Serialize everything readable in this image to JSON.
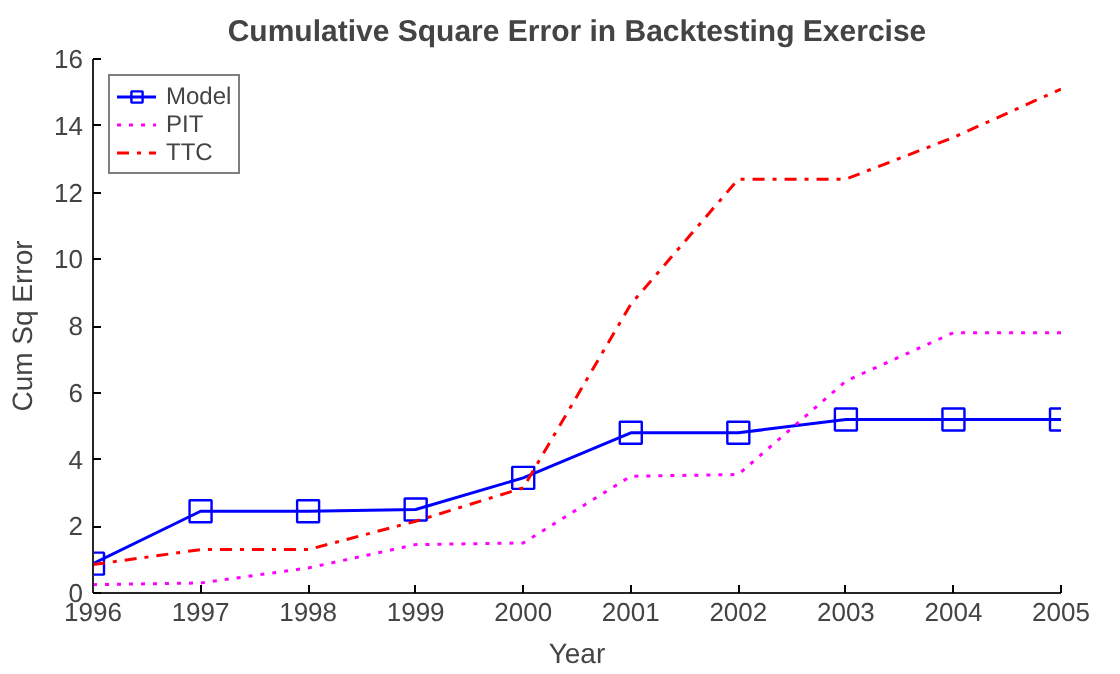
{
  "chart_data": {
    "type": "line",
    "title": "Cumulative Square Error in Backtesting Exercise",
    "xlabel": "Year",
    "ylabel": "Cum Sq Error",
    "x": [
      1996,
      1997,
      1998,
      1999,
      2000,
      2001,
      2002,
      2003,
      2004,
      2005
    ],
    "xlim": [
      1996,
      2005
    ],
    "xticks": [
      1996,
      1997,
      1998,
      1999,
      2000,
      2001,
      2002,
      2003,
      2004,
      2005
    ],
    "ylim": [
      0,
      16
    ],
    "yticks": [
      0,
      2,
      4,
      6,
      8,
      10,
      12,
      14,
      16
    ],
    "legend": "top left",
    "series": [
      {
        "name": "Model",
        "color": "#0000ff",
        "marker": "square",
        "line_style": "solid",
        "values": [
          0.88,
          2.45,
          2.45,
          2.5,
          3.45,
          4.8,
          4.8,
          5.2,
          5.2,
          5.2
        ]
      },
      {
        "name": "PIT",
        "color": "#ff00ff",
        "marker": "none",
        "line_style": "dotted",
        "values": [
          0.25,
          0.3,
          0.75,
          1.45,
          1.5,
          3.5,
          3.55,
          6.35,
          7.8,
          7.8
        ]
      },
      {
        "name": "TTC",
        "color": "#ff0000",
        "marker": "none",
        "line_style": "dashdot",
        "values": [
          0.85,
          1.3,
          1.3,
          2.15,
          3.15,
          8.65,
          12.4,
          12.4,
          13.65,
          15.1
        ]
      }
    ]
  }
}
